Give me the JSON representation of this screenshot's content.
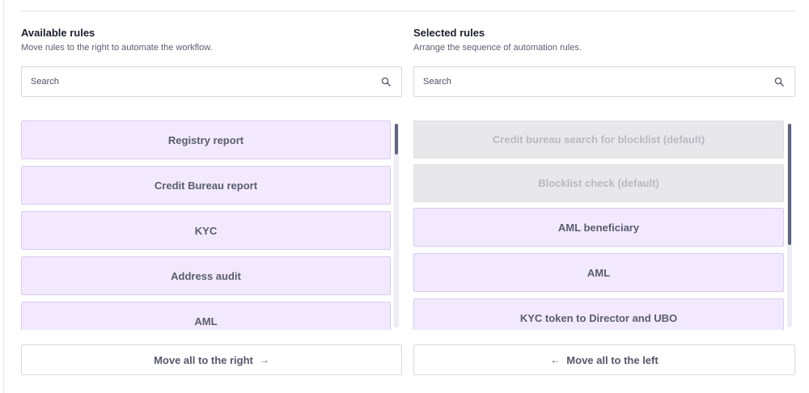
{
  "available": {
    "title": "Available rules",
    "subtitle": "Move rules to the right to automate the workflow.",
    "search_placeholder": "Search",
    "items": [
      {
        "label": "Registry report"
      },
      {
        "label": "Credit Bureau report"
      },
      {
        "label": "KYC"
      },
      {
        "label": "Address audit"
      },
      {
        "label": "AML"
      }
    ],
    "move_all_label": "Move all to the right",
    "move_all_icon": "arrow-right-icon"
  },
  "selected": {
    "title": "Selected rules",
    "subtitle": "Arrange the sequence of automation rules.",
    "search_placeholder": "Search",
    "items": [
      {
        "label": "Credit bureau search for blocklist (default)",
        "disabled": true
      },
      {
        "label": "Blocklist check (default)",
        "disabled": true
      },
      {
        "label": "AML beneficiary",
        "disabled": false
      },
      {
        "label": "AML",
        "disabled": false
      },
      {
        "label": "KYC token to Director and UBO",
        "disabled": false
      }
    ],
    "move_all_label": "Move all to the left",
    "move_all_icon": "arrow-left-icon"
  },
  "colors": {
    "item_bg": "#f2e9fe",
    "item_border": "#d7ccf0",
    "item_disabled_bg": "#e8e8ea",
    "scroll_thumb": "#5f6480"
  }
}
